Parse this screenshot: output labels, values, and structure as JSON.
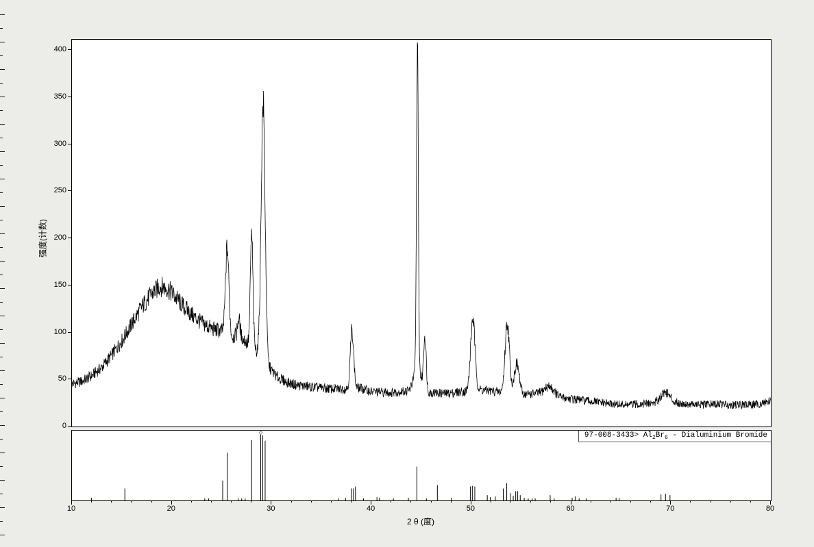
{
  "window": {
    "background_color": "#ecece9",
    "panel_background": "#ffffff",
    "trace_color": "#000000",
    "stick_color": "#000000",
    "axis_color": "#000000"
  },
  "chart_data": {
    "type": "line",
    "title": "",
    "xlabel": "2 θ (度)",
    "ylabel": "强度(计数)",
    "xlim": [
      10,
      80
    ],
    "ylim": [
      0,
      410
    ],
    "grid": false,
    "x_major_ticks": [
      10,
      20,
      30,
      40,
      50,
      60,
      70,
      80
    ],
    "x_minor_step": 2,
    "y_ticks": [
      0,
      50,
      100,
      150,
      200,
      250,
      300,
      350,
      400
    ],
    "series": [
      {
        "name": "measured-xrd-pattern",
        "baseline_points": [
          [
            10,
            45
          ],
          [
            11,
            48
          ],
          [
            12,
            54
          ],
          [
            13,
            63
          ],
          [
            14,
            76
          ],
          [
            15,
            91
          ],
          [
            16,
            109
          ],
          [
            17,
            127
          ],
          [
            18,
            141
          ],
          [
            18.8,
            149
          ],
          [
            19.5,
            147
          ],
          [
            20,
            142
          ],
          [
            20.7,
            133
          ],
          [
            21.5,
            124
          ],
          [
            22.3,
            116
          ],
          [
            23,
            110
          ],
          [
            24,
            104
          ],
          [
            25,
            101
          ],
          [
            26,
            95
          ],
          [
            26.8,
            97
          ],
          [
            27.5,
            89
          ],
          [
            28.6,
            79
          ],
          [
            29.8,
            62
          ],
          [
            30.5,
            53
          ],
          [
            31.5,
            47
          ],
          [
            32.5,
            44
          ],
          [
            34,
            42
          ],
          [
            36,
            40
          ],
          [
            37.5,
            40
          ],
          [
            38.8,
            41
          ],
          [
            40,
            37
          ],
          [
            42,
            36
          ],
          [
            44,
            38
          ],
          [
            46,
            36
          ],
          [
            47.5,
            35
          ],
          [
            49,
            37
          ],
          [
            51,
            39
          ],
          [
            52.5,
            37
          ],
          [
            55,
            34
          ],
          [
            56.5,
            35
          ],
          [
            58,
            32
          ],
          [
            59.5,
            30
          ],
          [
            61,
            28
          ],
          [
            62.5,
            26
          ],
          [
            64,
            24
          ],
          [
            65.5,
            23
          ],
          [
            67,
            24
          ],
          [
            68.5,
            25
          ],
          [
            70,
            26
          ],
          [
            71.5,
            24
          ],
          [
            73,
            23
          ],
          [
            74.5,
            24
          ],
          [
            76,
            23
          ],
          [
            77.5,
            23
          ],
          [
            79,
            24
          ],
          [
            80,
            28
          ]
        ],
        "peaks": [
          [
            25.55,
            92,
            0.17
          ],
          [
            26.7,
            18,
            0.12
          ],
          [
            28.0,
            118,
            0.13
          ],
          [
            29.15,
            272,
            0.2
          ],
          [
            38.05,
            62,
            0.17
          ],
          [
            44.6,
            345,
            0.09
          ],
          [
            44.6,
            25,
            0.35
          ],
          [
            45.35,
            58,
            0.13
          ],
          [
            50.15,
            76,
            0.22
          ],
          [
            53.6,
            74,
            0.22
          ],
          [
            54.55,
            32,
            0.25
          ],
          [
            57.8,
            10,
            0.5
          ],
          [
            69.4,
            11,
            0.45
          ]
        ],
        "noise": {
          "base": 3,
          "scale": 0.055
        },
        "observed_peak_summary": [
          [
            25.5,
            200
          ],
          [
            28.0,
            205
          ],
          [
            29.1,
            353
          ],
          [
            38.1,
            108
          ],
          [
            44.6,
            390
          ],
          [
            45.3,
            98
          ],
          [
            50.2,
            117
          ],
          [
            53.6,
            114
          ],
          [
            69.5,
            38
          ]
        ]
      }
    ],
    "reference_pattern": {
      "label_text": "97-008-3433> Al₂Br₆ - Dialuminium Bromide",
      "label_segments": [
        {
          "t": "97-008-3433> Al"
        },
        {
          "t": "2",
          "sub": true
        },
        {
          "t": "Br"
        },
        {
          "t": "6",
          "sub": true
        },
        {
          "t": " - Dialuminium Bromide"
        }
      ],
      "sticks": [
        [
          11.95,
          4
        ],
        [
          15.3,
          18
        ],
        [
          23.3,
          3
        ],
        [
          23.7,
          3
        ],
        [
          25.1,
          30
        ],
        [
          25.55,
          72
        ],
        [
          26.65,
          3
        ],
        [
          27.0,
          3
        ],
        [
          27.35,
          3
        ],
        [
          28.0,
          91
        ],
        [
          28.9,
          100,
          1
        ],
        [
          29.1,
          98
        ],
        [
          29.35,
          90
        ],
        [
          36.7,
          3
        ],
        [
          37.4,
          4
        ],
        [
          38.0,
          18
        ],
        [
          38.2,
          18
        ],
        [
          38.4,
          21
        ],
        [
          39.2,
          3
        ],
        [
          40.55,
          5
        ],
        [
          40.8,
          4
        ],
        [
          42.2,
          3
        ],
        [
          43.7,
          4
        ],
        [
          44.55,
          51
        ],
        [
          45.5,
          3
        ],
        [
          46.6,
          23
        ],
        [
          48.0,
          4
        ],
        [
          49.9,
          21
        ],
        [
          50.1,
          22
        ],
        [
          50.35,
          21
        ],
        [
          51.6,
          8
        ],
        [
          51.9,
          5
        ],
        [
          52.4,
          6
        ],
        [
          53.2,
          18
        ],
        [
          53.55,
          26
        ],
        [
          53.9,
          11
        ],
        [
          54.2,
          7
        ],
        [
          54.45,
          14
        ],
        [
          54.65,
          14
        ],
        [
          54.9,
          8
        ],
        [
          55.3,
          4
        ],
        [
          55.7,
          3
        ],
        [
          56.1,
          3
        ],
        [
          56.4,
          3
        ],
        [
          57.9,
          8
        ],
        [
          58.3,
          3
        ],
        [
          60.1,
          4
        ],
        [
          60.4,
          6
        ],
        [
          60.8,
          3
        ],
        [
          61.5,
          3
        ],
        [
          64.5,
          4
        ],
        [
          64.8,
          4
        ],
        [
          69.0,
          9
        ],
        [
          69.45,
          10
        ],
        [
          69.9,
          8
        ]
      ]
    }
  }
}
